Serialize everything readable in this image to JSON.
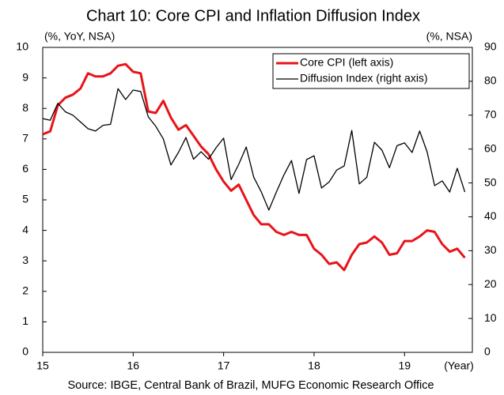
{
  "chart_data": {
    "type": "line",
    "title": "Chart 10: Core CPI and Inflation Diffusion Index",
    "y_label": "(%, YoY, NSA)",
    "y2_label": "(%, NSA)",
    "x_label": "(Year)",
    "source": "Source: IBGE, Central Bank of Brazil, MUFG Economic Research Office",
    "legend": "upper right",
    "xlim": [
      15,
      19.75
    ],
    "xticks": [
      15,
      16,
      17,
      18,
      19
    ],
    "ylim": [
      0,
      10
    ],
    "yticks": [
      0,
      1,
      2,
      3,
      4,
      5,
      6,
      7,
      8,
      9,
      10
    ],
    "y2lim": [
      0,
      90
    ],
    "y2ticks": [
      0,
      10,
      20,
      30,
      40,
      50,
      60,
      70,
      80,
      90
    ],
    "x": [
      15,
      15.083,
      15.167,
      15.25,
      15.333,
      15.417,
      15.5,
      15.583,
      15.667,
      15.75,
      15.833,
      15.917,
      16,
      16.083,
      16.167,
      16.25,
      16.333,
      16.417,
      16.5,
      16.583,
      16.667,
      16.75,
      16.833,
      16.917,
      17,
      17.083,
      17.167,
      17.25,
      17.333,
      17.417,
      17.5,
      17.583,
      17.667,
      17.75,
      17.833,
      17.917,
      18,
      18.083,
      18.167,
      18.25,
      18.333,
      18.417,
      18.5,
      18.583,
      18.667,
      18.75,
      18.833,
      18.917,
      19,
      19.083,
      19.167,
      19.25,
      19.333,
      19.417,
      19.5,
      19.583,
      19.667
    ],
    "series": [
      {
        "name": "Core CPI (left axis)",
        "color": "#e8141a",
        "width": 3,
        "axis": "y",
        "values": [
          7.15,
          7.25,
          8.1,
          8.35,
          8.45,
          8.65,
          9.15,
          9.05,
          9.05,
          9.15,
          9.4,
          9.45,
          9.2,
          9.15,
          7.9,
          7.85,
          8.25,
          7.7,
          7.3,
          7.45,
          7.1,
          6.75,
          6.5,
          6.0,
          5.6,
          5.3,
          5.5,
          5.0,
          4.5,
          4.2,
          4.2,
          3.95,
          3.85,
          3.95,
          3.85,
          3.85,
          3.4,
          3.2,
          2.9,
          2.95,
          2.7,
          3.2,
          3.55,
          3.6,
          3.8,
          3.6,
          3.2,
          3.25,
          3.65,
          3.65,
          3.8,
          4.0,
          3.95,
          3.55,
          3.3,
          3.4,
          3.1
        ]
      },
      {
        "name": "Diffusion Index (right axis)",
        "color": "#000000",
        "width": 1.3,
        "axis": "y2",
        "values": [
          69,
          68.5,
          73.5,
          71,
          70,
          68,
          66,
          65.3,
          67,
          67.3,
          77.8,
          74.6,
          77.4,
          77,
          69.5,
          66.7,
          63,
          55.3,
          59,
          63.4,
          57,
          59.2,
          57,
          60.4,
          63.2,
          51,
          55.5,
          60.6,
          51.7,
          47.3,
          42,
          47.3,
          52.4,
          56.6,
          46.9,
          56.9,
          58,
          48.5,
          50.3,
          53.8,
          55,
          65.5,
          49.7,
          51.7,
          62,
          59.7,
          54.5,
          61,
          61.8,
          59,
          65.3,
          59.2,
          49.2,
          50.6,
          47.3,
          54.3,
          47.3
        ]
      }
    ]
  }
}
